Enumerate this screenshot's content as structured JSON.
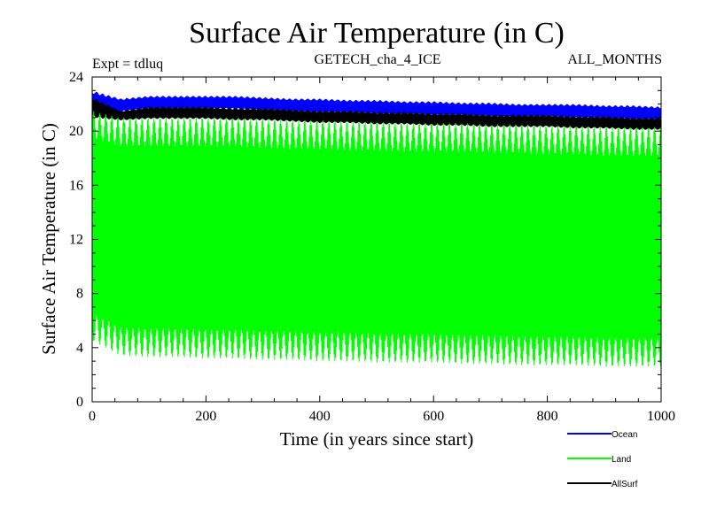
{
  "chart_data": {
    "type": "line",
    "title": "Surface Air Temperature (in C)",
    "header_left": "Expt = tdluq",
    "header_center": "GETECH_cha_4_ICE",
    "header_right": "ALL_MONTHS",
    "xlabel": "Time (in years since start)",
    "ylabel": "Surface Air Temperature (in C)",
    "xlim": [
      0,
      1000
    ],
    "ylim": [
      0,
      24
    ],
    "x_ticks": [
      0,
      200,
      400,
      600,
      800,
      1000
    ],
    "y_ticks": [
      0,
      4,
      8,
      12,
      16,
      20,
      24
    ],
    "x_ticks_labels": [
      "0",
      "200",
      "400",
      "600",
      "800",
      "1000"
    ],
    "y_ticks_labels": [
      "0",
      "4",
      "8",
      "12",
      "16",
      "20",
      "24"
    ],
    "grid": false,
    "legend_position": "bottom-right, below plot",
    "series": [
      {
        "name": "Ocean",
        "color": "#0000ff",
        "x": [
          0,
          50,
          100,
          150,
          200,
          250,
          300,
          350,
          400,
          450,
          500,
          550,
          600,
          650,
          700,
          750,
          800,
          850,
          900,
          950,
          1000
        ],
        "upper": [
          23.0,
          22.4,
          22.6,
          22.6,
          22.6,
          22.6,
          22.5,
          22.4,
          22.4,
          22.3,
          22.3,
          22.2,
          22.2,
          22.1,
          22.1,
          22.0,
          22.0,
          22.0,
          21.9,
          21.9,
          21.8
        ],
        "lower": [
          21.2,
          21.4,
          21.6,
          21.6,
          21.6,
          21.6,
          21.5,
          21.4,
          21.3,
          21.3,
          21.2,
          21.2,
          21.1,
          21.1,
          21.0,
          21.0,
          21.0,
          20.9,
          20.9,
          20.8,
          20.8
        ]
      },
      {
        "name": "Land",
        "color": "#00ff00",
        "x": [
          0,
          50,
          100,
          150,
          200,
          250,
          300,
          350,
          400,
          450,
          500,
          550,
          600,
          650,
          700,
          750,
          800,
          850,
          900,
          950,
          1000
        ],
        "upper": [
          21.5,
          21.0,
          21.0,
          21.0,
          21.0,
          21.0,
          20.9,
          20.8,
          20.8,
          20.7,
          20.7,
          20.6,
          20.6,
          20.6,
          20.5,
          20.5,
          20.4,
          20.4,
          20.3,
          20.3,
          20.3
        ],
        "lower": [
          4.5,
          3.4,
          3.3,
          3.3,
          3.2,
          3.2,
          3.1,
          3.1,
          3.0,
          3.0,
          2.9,
          2.9,
          2.9,
          2.8,
          2.8,
          2.7,
          2.7,
          2.7,
          2.6,
          2.6,
          2.6
        ]
      },
      {
        "name": "AllSurf",
        "color": "#000000",
        "x": [
          0,
          50,
          100,
          150,
          200,
          250,
          300,
          350,
          400,
          450,
          500,
          550,
          600,
          650,
          700,
          750,
          800,
          850,
          900,
          950,
          1000
        ],
        "upper": [
          22.5,
          21.5,
          21.8,
          21.8,
          21.8,
          21.7,
          21.7,
          21.6,
          21.5,
          21.5,
          21.4,
          21.4,
          21.3,
          21.3,
          21.2,
          21.2,
          21.2,
          21.1,
          21.1,
          21.0,
          21.0
        ],
        "lower": [
          21.0,
          20.8,
          20.9,
          20.9,
          20.9,
          20.8,
          20.8,
          20.7,
          20.6,
          20.6,
          20.5,
          20.5,
          20.4,
          20.4,
          20.3,
          20.3,
          20.3,
          20.2,
          20.2,
          20.1,
          20.1
        ]
      }
    ]
  }
}
